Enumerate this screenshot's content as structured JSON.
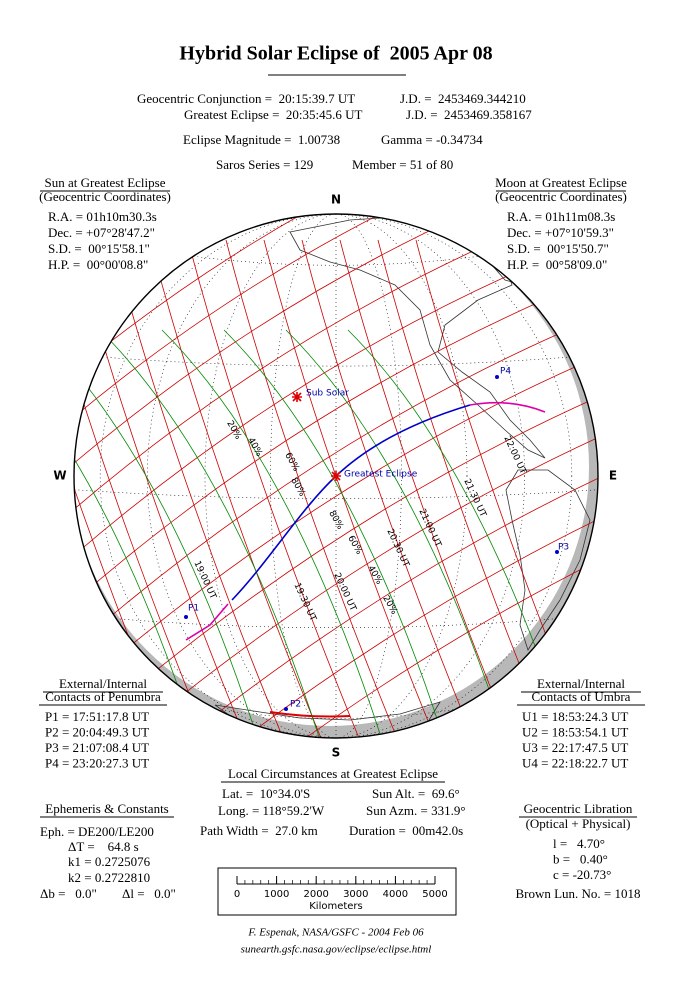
{
  "title": "Hybrid Solar Eclipse of  2005 Apr 08",
  "header": {
    "rows": [
      [
        "Geocentric Conjunction =  20:15:39.7 UT",
        "J.D. =  2453469.344210"
      ],
      [
        "Greatest Eclipse =  20:35:45.6 UT",
        "J.D. =  2453469.358167"
      ],
      [
        "Eclipse Magnitude =  1.00738",
        "Gamma = -0.34734"
      ],
      [
        "Saros Series = 129",
        "Member = 51 of 80"
      ]
    ]
  },
  "sun": {
    "title": "Sun at Greatest Eclipse",
    "subtitle": "(Geocentric Coordinates)",
    "lines": [
      "R.A. = 01h10m30.3s",
      "Dec. = +07°28'47.2\"",
      "S.D. =  00°15'58.1\"",
      "H.P. =  00°00'08.8\""
    ]
  },
  "moon": {
    "title": "Moon at Greatest Eclipse",
    "subtitle": "(Geocentric Coordinates)",
    "lines": [
      "R.A. = 01h11m08.3s",
      "Dec. = +07°10'59.3\"",
      "S.D. =  00°15'50.7\"",
      "H.P. =  00°58'09.0\""
    ]
  },
  "compass": {
    "north": "N",
    "south": "S",
    "west": "W",
    "east": "E"
  },
  "map_labels": {
    "sub_solar": "Sub Solar",
    "greatest_eclipse": "Greatest Eclipse",
    "contacts": [
      "P1",
      "P2",
      "P3",
      "P4"
    ],
    "magnitudes": [
      "20%",
      "40%",
      "60%",
      "80%",
      "80%",
      "60%",
      "40%",
      "20%"
    ],
    "times": [
      "19:00 UT",
      "19:30 UT",
      "20:00 UT",
      "20:30 UT",
      "21:00 UT",
      "21:30 UT",
      "22:00 UT"
    ]
  },
  "penumbra": {
    "title": "External/Internal",
    "subtitle": "Contacts of Penumbra",
    "lines": [
      "P1 = 17:51:17.8 UT",
      "P2 = 20:04:49.3 UT",
      "P3 = 21:07:08.4 UT",
      "P4 = 23:20:27.3 UT"
    ]
  },
  "umbra": {
    "title": "External/Internal",
    "subtitle": "Contacts of Umbra",
    "lines": [
      "U1 = 18:53:24.3 UT",
      "U2 = 18:53:54.1 UT",
      "U3 = 22:17:47.5 UT",
      "U4 = 22:18:22.7 UT"
    ]
  },
  "local": {
    "title": "Local Circumstances at Greatest Eclipse",
    "rows": [
      [
        "Lat. =  10°34.0'S",
        "Sun Alt. =  69.6°"
      ],
      [
        "Long. = 118°59.2'W",
        "Sun Azm. = 331.9°"
      ],
      [
        "Path Width =  27.0 km",
        "Duration =  00m42.0s"
      ]
    ]
  },
  "ephemeris": {
    "title": "Ephemeris & Constants",
    "lines": [
      "Eph. = DE200/LE200",
      "ΔT =    64.8 s",
      "k1 = 0.2725076",
      "k2 = 0.2722810",
      "Δb =   0.0\"",
      "Δl =   0.0\""
    ]
  },
  "libration": {
    "title": "Geocentric Libration",
    "subtitle": "(Optical + Physical)",
    "lines": [
      "l =   4.70°",
      "b =   0.40°",
      "c = -20.73°"
    ],
    "brown": "Brown Lun. No. = 1018"
  },
  "scale": {
    "ticks": [
      0,
      1000,
      2000,
      3000,
      4000,
      5000
    ],
    "label": "Kilometers"
  },
  "footer": [
    "F. Espenak, NASA/GSFC - 2004 Feb 06",
    "sunearth.gsfc.nasa.gov/eclipse/eclipse.html"
  ]
}
